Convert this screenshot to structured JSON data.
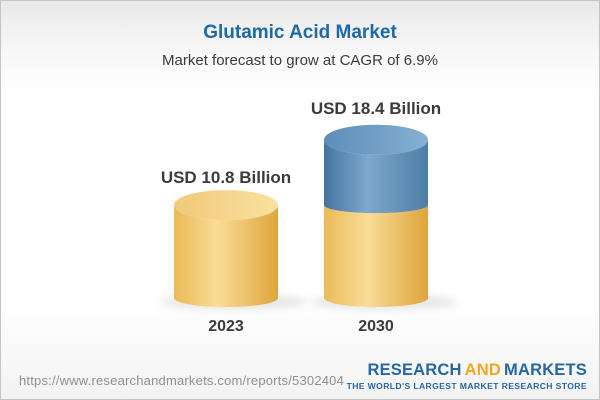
{
  "header": {
    "title": "Glutamic Acid Market",
    "subtitle": "Market forecast to grow at CAGR of 6.9%"
  },
  "chart_data": {
    "type": "bar",
    "subtype": "3d-cylinder",
    "title": "Glutamic Acid Market",
    "subtitle": "Market forecast to grow at CAGR of 6.9%",
    "cagr": "6.9%",
    "unit": "USD Billion",
    "categories": [
      "2023",
      "2030"
    ],
    "values": [
      10.8,
      18.4
    ],
    "value_labels": [
      "USD 10.8 Billion",
      "USD 18.4 Billion"
    ],
    "ylim": [
      0,
      20
    ],
    "growth_split": {
      "bar_index": 1,
      "base_value": 10.8
    },
    "legend": "none",
    "grid": false,
    "colors": {
      "base_segment": "#F3CF7E",
      "growth_segment": "#5F90BB",
      "label_text": "#3B3B3B"
    },
    "gradients": {
      "yellow_body": [
        [
          0,
          "#EBBA58"
        ],
        [
          0.42,
          "#F8DC96"
        ],
        [
          1,
          "#DFA53C"
        ]
      ],
      "yellow_top": [
        [
          0,
          "#F1C979"
        ],
        [
          1,
          "#F9E1A0"
        ]
      ],
      "blue_body": [
        [
          0,
          "#44749E"
        ],
        [
          0.42,
          "#7EA8CE"
        ],
        [
          1,
          "#4C7DA5"
        ]
      ],
      "blue_top": [
        [
          0,
          "#5E8EB9"
        ],
        [
          1,
          "#86AFD3"
        ]
      ]
    }
  },
  "footer": {
    "url": "https://www.researchandmarkets.com/reports/5302404",
    "logo": {
      "word1": "RESEARCH",
      "word2": "AND",
      "word3": "MARKETS",
      "tagline": "THE WORLD'S LARGEST MARKET RESEARCH STORE",
      "blue": "#2766A4",
      "orange": "#F1A71E"
    }
  },
  "colors": {
    "title_blue": "#1E69A8",
    "text_dark": "#3B3B3B",
    "url_gray": "#8F8F8F",
    "frame_border": "#C4C4C4"
  }
}
